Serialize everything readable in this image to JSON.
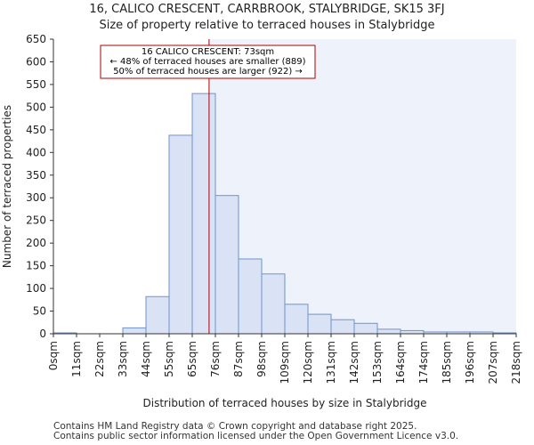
{
  "title_line1": "16, CALICO CRESCENT, CARRBROOK, STALYBRIDGE, SK15 3FJ",
  "title_line2": "Size of property relative to terraced houses in Stalybridge",
  "footer_line1": "Contains HM Land Registry data © Crown copyright and database right 2025.",
  "footer_line2": "Contains public sector information licensed under the Open Government Licence v3.0.",
  "colors": {
    "bar_fill": "#dae3f5",
    "bar_stroke": "#6f93cc",
    "shade": "#eef2fa",
    "marker": "#b00000",
    "annotation_border": "#b00000"
  },
  "chart_data": {
    "type": "bar",
    "xlabel": "Distribution of terraced houses by size in Stalybridge",
    "ylabel": "Number of terraced properties",
    "ylim": [
      0,
      650
    ],
    "yticks": [
      0,
      50,
      100,
      150,
      200,
      250,
      300,
      350,
      400,
      450,
      500,
      550,
      600,
      650
    ],
    "bin_edges": [
      0,
      11,
      22,
      33,
      44,
      55,
      65,
      76,
      87,
      98,
      109,
      120,
      131,
      142,
      153,
      164,
      174,
      185,
      196,
      207,
      218
    ],
    "x_tick_labels": [
      "0sqm",
      "11sqm",
      "22sqm",
      "33sqm",
      "44sqm",
      "55sqm",
      "65sqm",
      "76sqm",
      "87sqm",
      "98sqm",
      "109sqm",
      "120sqm",
      "131sqm",
      "142sqm",
      "153sqm",
      "164sqm",
      "174sqm",
      "185sqm",
      "196sqm",
      "207sqm",
      "218sqm"
    ],
    "values": [
      2,
      0,
      0,
      13,
      82,
      438,
      530,
      305,
      165,
      132,
      65,
      43,
      31,
      23,
      10,
      7,
      4,
      4,
      4,
      2
    ],
    "marker_value": 73,
    "shaded_from": 73,
    "annotation": {
      "line1": "16 CALICO CRESCENT: 73sqm",
      "line2": "← 48% of terraced houses are smaller (889)",
      "line3": "50% of terraced houses are larger (922) →"
    },
    "grid": false
  }
}
